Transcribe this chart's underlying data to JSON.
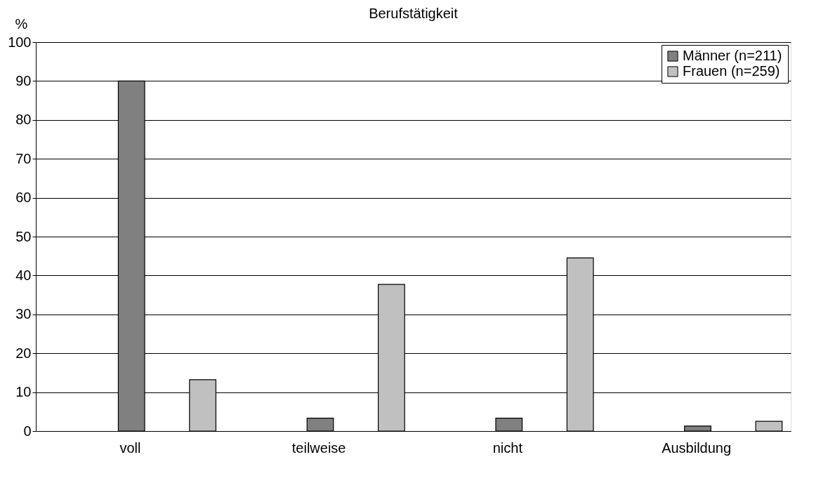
{
  "chart_data": {
    "type": "bar",
    "title": "Berufstätigkeit",
    "ylabel": "%",
    "categories": [
      "voll",
      "teilweise",
      "nicht",
      "Ausbildung"
    ],
    "series": [
      {
        "name": "Männer (n=211)",
        "color": "#808080",
        "values": [
          90,
          3.3,
          3.3,
          1.3
        ]
      },
      {
        "name": "Frauen  (n=259)",
        "color": "#c0c0c0",
        "values": [
          13.2,
          37.7,
          44.5,
          2.5
        ]
      }
    ],
    "ylim": [
      0,
      100
    ],
    "yticks": [
      0,
      10,
      20,
      30,
      40,
      50,
      60,
      70,
      80,
      90,
      100
    ],
    "grid": "y",
    "legend": "top right"
  }
}
